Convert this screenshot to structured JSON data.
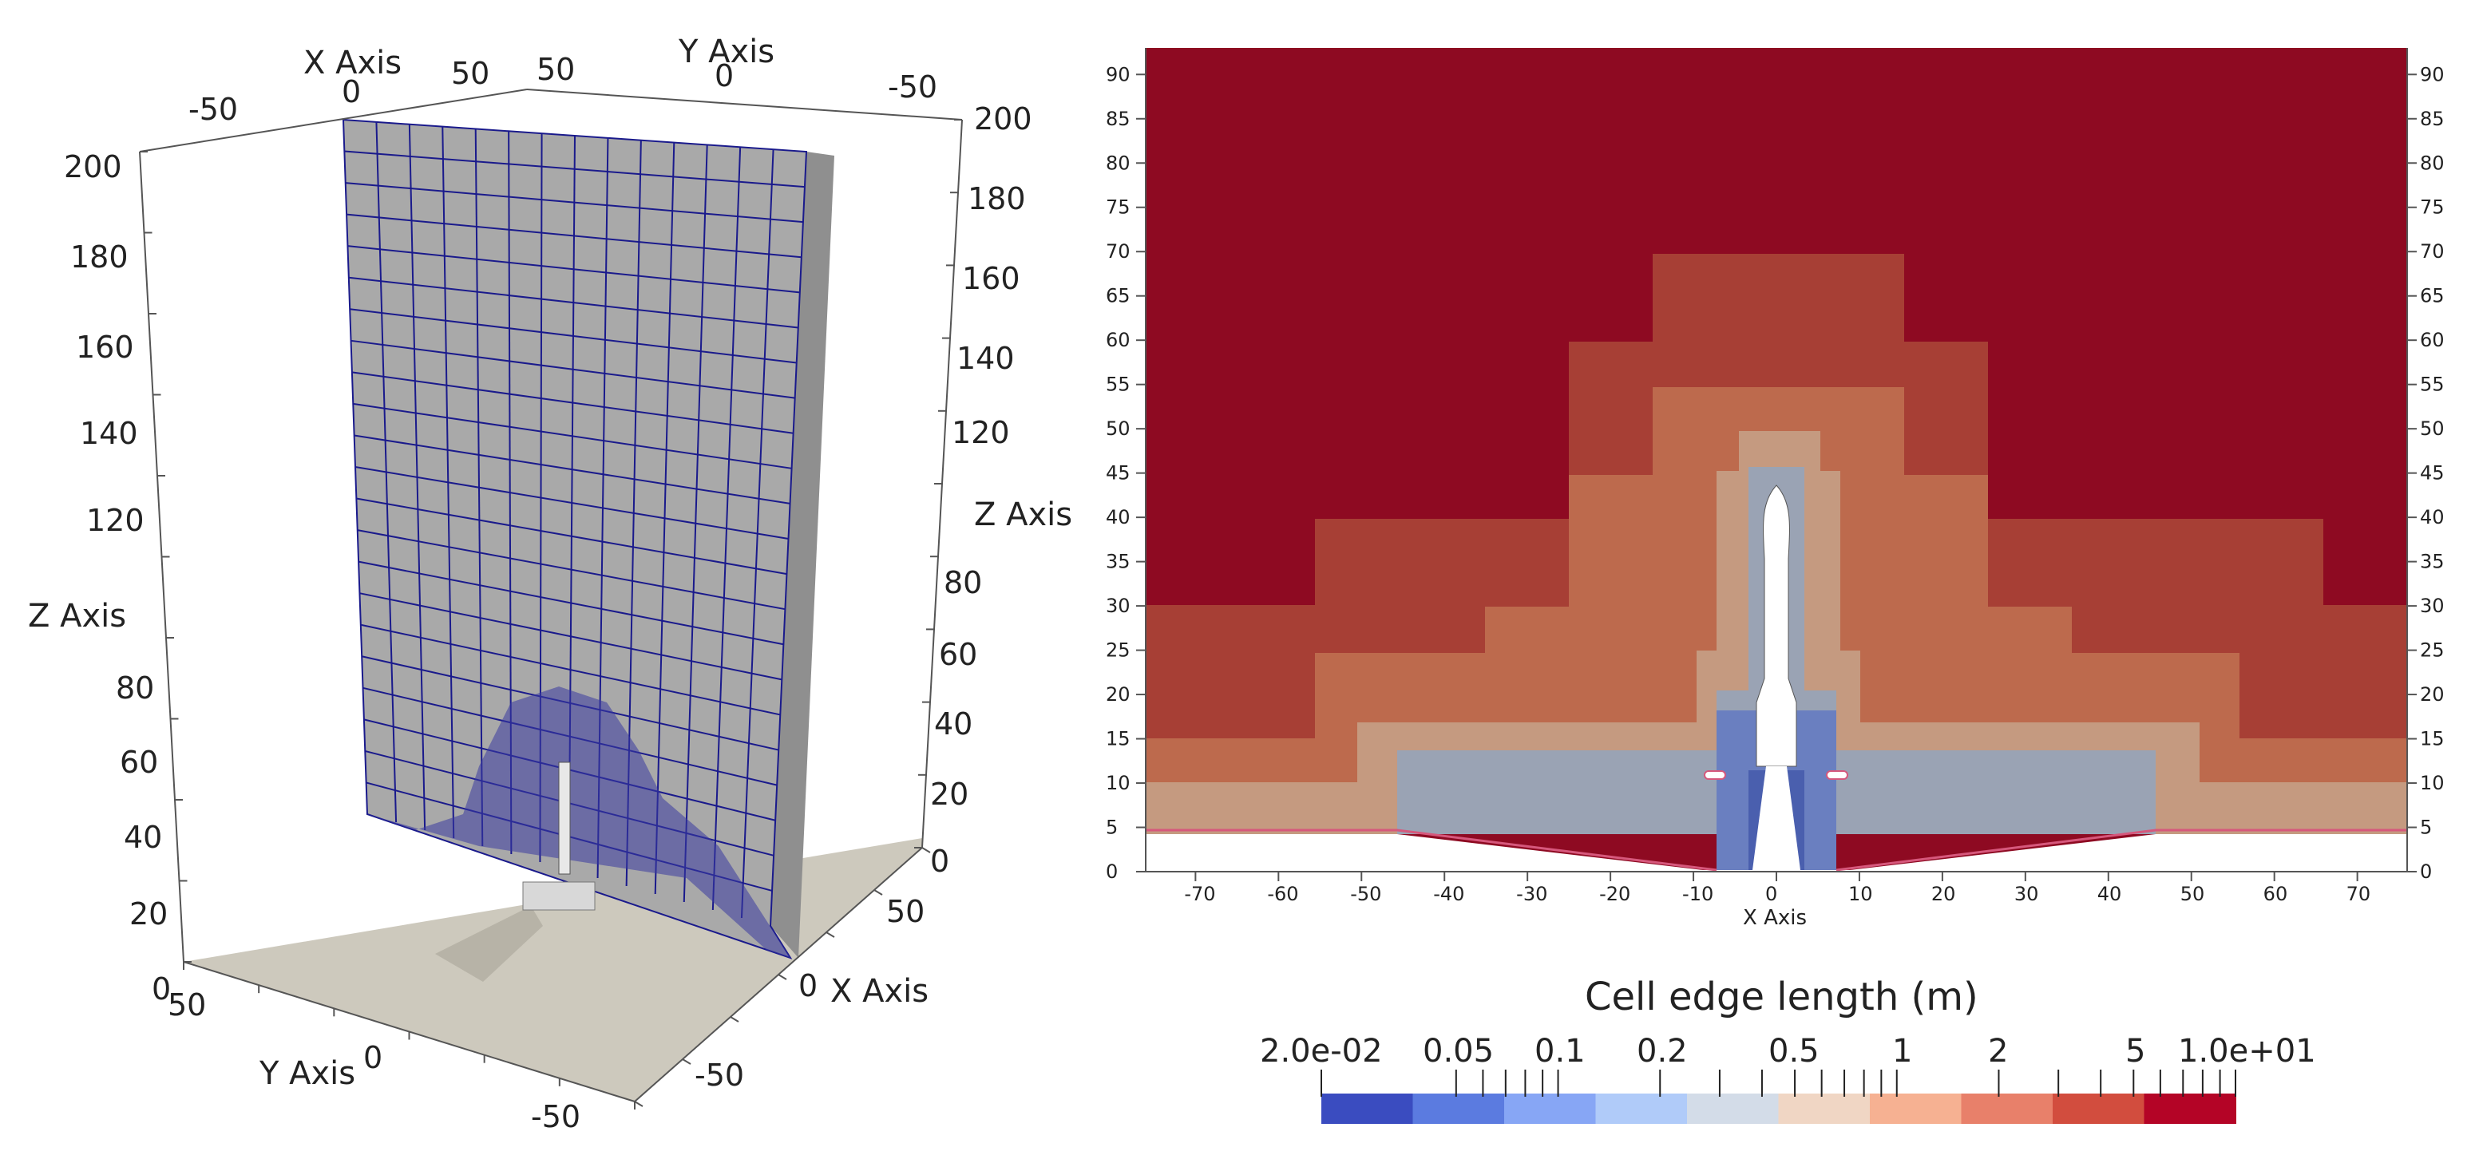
{
  "left_view": {
    "top_x_axis": {
      "title": "X Axis",
      "ticks": [
        "-50",
        "0",
        "50"
      ]
    },
    "top_y_axis": {
      "title": "Y Axis",
      "ticks": [
        "50",
        "0",
        "-50"
      ]
    },
    "left_z_axis": {
      "title": "Z Axis",
      "ticks": [
        "200",
        "180",
        "160",
        "140",
        "120",
        "80",
        "60",
        "40",
        "20",
        "0"
      ]
    },
    "right_z_axis": {
      "title": "Z Axis",
      "ticks": [
        "200",
        "180",
        "160",
        "140",
        "120",
        "80",
        "60",
        "40",
        "20",
        "0"
      ]
    },
    "bottom_y_axis": {
      "title": "Y Axis",
      "ticks": [
        "50",
        "0",
        "-50"
      ]
    },
    "bottom_x_axis": {
      "title": "X Axis",
      "ticks": [
        "50",
        "0",
        "-50"
      ]
    },
    "colors": {
      "mesh_fill": "#a9a9a9",
      "mesh_lines": "#1a1a8c",
      "ground": "#cdc9bd"
    }
  },
  "right_view": {
    "x_axis_title": "X Axis",
    "x_ticks": [
      "-70",
      "-60",
      "-50",
      "-40",
      "-30",
      "-20",
      "-10",
      "0",
      "10",
      "20",
      "30",
      "40",
      "50",
      "60",
      "70"
    ],
    "y_ticks": [
      "0",
      "5",
      "10",
      "15",
      "20",
      "25",
      "30",
      "35",
      "40",
      "45",
      "50",
      "55",
      "60",
      "65",
      "70",
      "75",
      "80",
      "85",
      "90"
    ],
    "colors": {
      "level_10": "#8e0a22",
      "level_5": "#a73f35",
      "level_2": "#bd6a4d",
      "level_1": "#c59a80",
      "level_05": "#9aa3b4",
      "level_02": "#6a7fc0",
      "level_01": "#4a5fae"
    }
  },
  "colorbar": {
    "title": "Cell edge length (m)",
    "tick_labels": [
      "2.0e-02",
      "0.05",
      "0.1",
      "0.2",
      "0.5",
      "1",
      "2",
      "5",
      "1.0e+01"
    ],
    "bands": [
      "#3a4cc0",
      "#5b7be0",
      "#87a6f5",
      "#b0cbf9",
      "#d3dce8",
      "#f0d6c4",
      "#f6b192",
      "#e8806a",
      "#d24d3e",
      "#b40426"
    ]
  }
}
